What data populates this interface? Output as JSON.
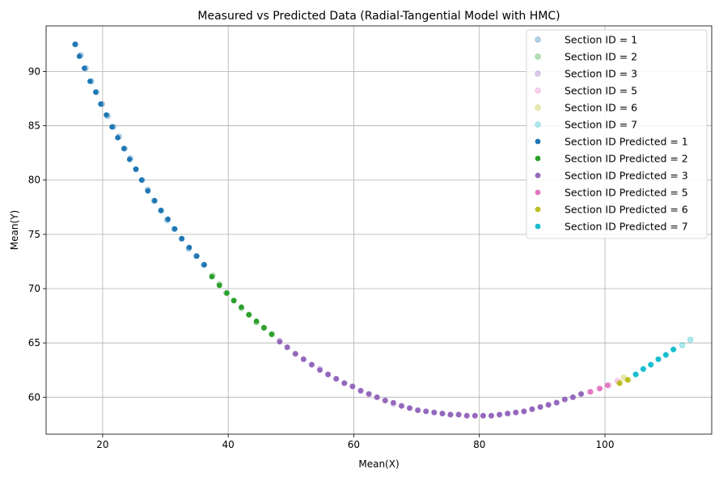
{
  "chart_data": {
    "type": "scatter",
    "title": "Measured vs Predicted Data (Radial-Tangential Model with HMC)",
    "xlabel": "Mean(X)",
    "ylabel": "Mean(Y)",
    "xlim": [
      11,
      117
    ],
    "ylim": [
      56.6,
      94.2
    ],
    "xticks": [
      20,
      40,
      60,
      80,
      100
    ],
    "yticks": [
      60,
      65,
      70,
      75,
      80,
      85,
      90
    ],
    "grid": true,
    "legend_position": "top-right",
    "series": [
      {
        "name": "Section ID = 1",
        "color": "#1f77b4",
        "kind": "measured",
        "x": [
          15.7,
          16.5,
          17.3,
          18.2,
          19.0,
          19.9,
          20.8,
          21.7,
          22.6,
          23.5,
          24.4,
          25.3,
          26.3,
          27.2,
          28.2,
          29.3,
          30.3,
          31.4,
          32.6,
          33.7,
          34.9,
          36.1
        ],
        "y": [
          92.5,
          91.5,
          90.3,
          89.1,
          88.1,
          87.0,
          85.9,
          84.9,
          84.0,
          82.9,
          82.0,
          81.0,
          80.0,
          79.1,
          78.1,
          77.2,
          76.3,
          75.5,
          74.6,
          73.7,
          73.0,
          72.2
        ]
      },
      {
        "name": "Section ID = 2",
        "color": "#2ca02c",
        "kind": "measured",
        "x": [
          37.5,
          38.6,
          39.7,
          40.9,
          42.1,
          43.3,
          44.5,
          45.7,
          47.0
        ],
        "y": [
          71.2,
          70.4,
          69.6,
          68.9,
          68.2,
          67.6,
          66.9,
          66.4,
          65.8
        ]
      },
      {
        "name": "Section ID = 3",
        "color": "#9467bd",
        "kind": "measured",
        "x": [
          48.2,
          49.4,
          50.7,
          52.0,
          53.3,
          54.6,
          55.9,
          57.2,
          58.5,
          59.8,
          61.1,
          62.4,
          63.7,
          65.0,
          66.3,
          67.6,
          68.9,
          70.2,
          71.5,
          72.8,
          74.1,
          75.4,
          76.7,
          78.0,
          79.3,
          80.6,
          81.9,
          83.2,
          84.5,
          85.8,
          87.1,
          88.4,
          89.7,
          91.0,
          92.3,
          93.6,
          94.9,
          96.2
        ],
        "y": [
          65.2,
          64.6,
          64.0,
          63.5,
          63.0,
          62.6,
          62.1,
          61.7,
          61.3,
          61.0,
          60.6,
          60.3,
          60.0,
          59.7,
          59.4,
          59.2,
          59.0,
          58.8,
          58.7,
          58.6,
          58.5,
          58.4,
          58.4,
          58.3,
          58.3,
          58.3,
          58.3,
          58.4,
          58.5,
          58.6,
          58.7,
          58.9,
          59.1,
          59.3,
          59.5,
          59.8,
          60.0,
          60.3
        ]
      },
      {
        "name": "Section ID = 5",
        "color": "#e377c2",
        "kind": "measured",
        "x": [
          97.6,
          99.1,
          100.6,
          102.0
        ],
        "y": [
          60.5,
          60.8,
          61.1,
          61.5
        ]
      },
      {
        "name": "Section ID = 6",
        "color": "#bcbd22",
        "kind": "measured",
        "x": [
          102.4,
          103.0,
          103.7
        ],
        "y": [
          61.3,
          61.8,
          61.6
        ]
      },
      {
        "name": "Section ID = 7",
        "color": "#17becf",
        "kind": "measured",
        "x": [
          104.9,
          106.1,
          107.3,
          108.5,
          109.7,
          110.9,
          112.3,
          113.6
        ],
        "y": [
          62.1,
          62.6,
          63.0,
          63.5,
          63.9,
          64.4,
          64.8,
          65.3
        ]
      },
      {
        "name": "Section ID Predicted = 1",
        "color": "#1f77b4",
        "kind": "predicted",
        "x": [
          15.6,
          16.3,
          17.1,
          18.0,
          18.9,
          19.7,
          20.6,
          21.5,
          22.4,
          23.4,
          24.3,
          25.3,
          26.2,
          27.2,
          28.3,
          29.3,
          30.4,
          31.5,
          32.6,
          33.8,
          35.0,
          36.2
        ],
        "y": [
          92.5,
          91.4,
          90.3,
          89.1,
          88.1,
          87.0,
          86.0,
          84.9,
          83.9,
          82.9,
          81.9,
          81.0,
          80.0,
          79.0,
          78.1,
          77.2,
          76.4,
          75.5,
          74.6,
          73.8,
          73.0,
          72.2
        ]
      },
      {
        "name": "Section ID Predicted = 2",
        "color": "#2ca02c",
        "kind": "predicted",
        "x": [
          37.4,
          38.6,
          39.8,
          40.9,
          42.1,
          43.3,
          44.5,
          45.7,
          46.9
        ],
        "y": [
          71.1,
          70.3,
          69.6,
          68.9,
          68.3,
          67.6,
          67.0,
          66.4,
          65.8
        ]
      },
      {
        "name": "Section ID Predicted = 3",
        "color": "#9467bd",
        "kind": "predicted",
        "x": [
          48.2,
          49.4,
          50.7,
          52.0,
          53.3,
          54.6,
          55.9,
          57.2,
          58.5,
          59.8,
          61.1,
          62.4,
          63.7,
          65.0,
          66.3,
          67.6,
          68.9,
          70.2,
          71.5,
          72.8,
          74.1,
          75.4,
          76.7,
          78.0,
          79.3,
          80.6,
          81.9,
          83.2,
          84.5,
          85.8,
          87.1,
          88.4,
          89.7,
          91.0,
          92.3,
          93.6,
          94.9,
          96.2
        ],
        "y": [
          65.1,
          64.6,
          64.0,
          63.5,
          63.0,
          62.5,
          62.1,
          61.7,
          61.3,
          61.0,
          60.6,
          60.3,
          60.0,
          59.7,
          59.5,
          59.2,
          59.0,
          58.8,
          58.7,
          58.6,
          58.5,
          58.4,
          58.4,
          58.3,
          58.3,
          58.3,
          58.3,
          58.4,
          58.5,
          58.6,
          58.7,
          58.9,
          59.1,
          59.3,
          59.5,
          59.8,
          60.0,
          60.3
        ]
      },
      {
        "name": "Section ID Predicted = 5",
        "color": "#e377c2",
        "kind": "predicted",
        "x": [
          97.7,
          99.2,
          100.4
        ],
        "y": [
          60.5,
          60.8,
          61.1
        ]
      },
      {
        "name": "Section ID Predicted = 6",
        "color": "#bcbd22",
        "kind": "predicted",
        "x": [
          102.3,
          103.6
        ],
        "y": [
          61.3,
          61.6
        ]
      },
      {
        "name": "Section ID Predicted = 7",
        "color": "#17becf",
        "kind": "predicted",
        "x": [
          104.9,
          106.1,
          107.3,
          108.5,
          109.7,
          110.9
        ],
        "y": [
          62.1,
          62.6,
          63.0,
          63.5,
          63.9,
          64.4
        ]
      }
    ]
  }
}
